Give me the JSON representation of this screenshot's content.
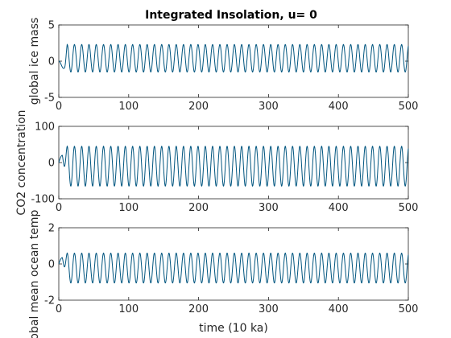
{
  "chart_data": [
    {
      "type": "line",
      "title": "Integrated Insolation, u= 0",
      "xlabel": "",
      "ylabel": "global ice mass",
      "xlim": [
        0,
        500
      ],
      "ylim": [
        -5,
        5
      ],
      "xticks": [
        0,
        100,
        200,
        300,
        400,
        500
      ],
      "yticks": [
        -5,
        0,
        5
      ],
      "grid": false,
      "color": "#00557f",
      "signal": {
        "start_value": 0,
        "dip_min": -1.0,
        "dip_at": 7,
        "peak_max": 2.3,
        "trough_min": -1.5,
        "period": 10.4,
        "cycles": 48
      }
    },
    {
      "type": "line",
      "title": "",
      "xlabel": "",
      "ylabel": "CO2 concentration",
      "xlim": [
        0,
        500
      ],
      "ylim": [
        -100,
        100
      ],
      "xticks": [
        0,
        100,
        200,
        300,
        400,
        500
      ],
      "yticks": [
        -100,
        0,
        100
      ],
      "grid": false,
      "color": "#00557f",
      "signal": {
        "start_value": 0,
        "first_peak": 20,
        "first_peak_at": 5,
        "peak_max": 45,
        "trough_min": -65,
        "period": 10.4,
        "cycles": 48
      }
    },
    {
      "type": "line",
      "title": "",
      "xlabel": "time (10 ka)",
      "ylabel": "global mean ocean temp",
      "xlim": [
        0,
        500
      ],
      "ylim": [
        -2,
        2
      ],
      "xticks": [
        0,
        100,
        200,
        300,
        400,
        500
      ],
      "yticks": [
        -2,
        0,
        2
      ],
      "grid": false,
      "color": "#00557f",
      "signal": {
        "start_value": 0,
        "first_peak": 0.35,
        "first_peak_at": 5,
        "peak_max": 0.6,
        "trough_min": -1.05,
        "period": 10.4,
        "cycles": 48
      }
    }
  ]
}
